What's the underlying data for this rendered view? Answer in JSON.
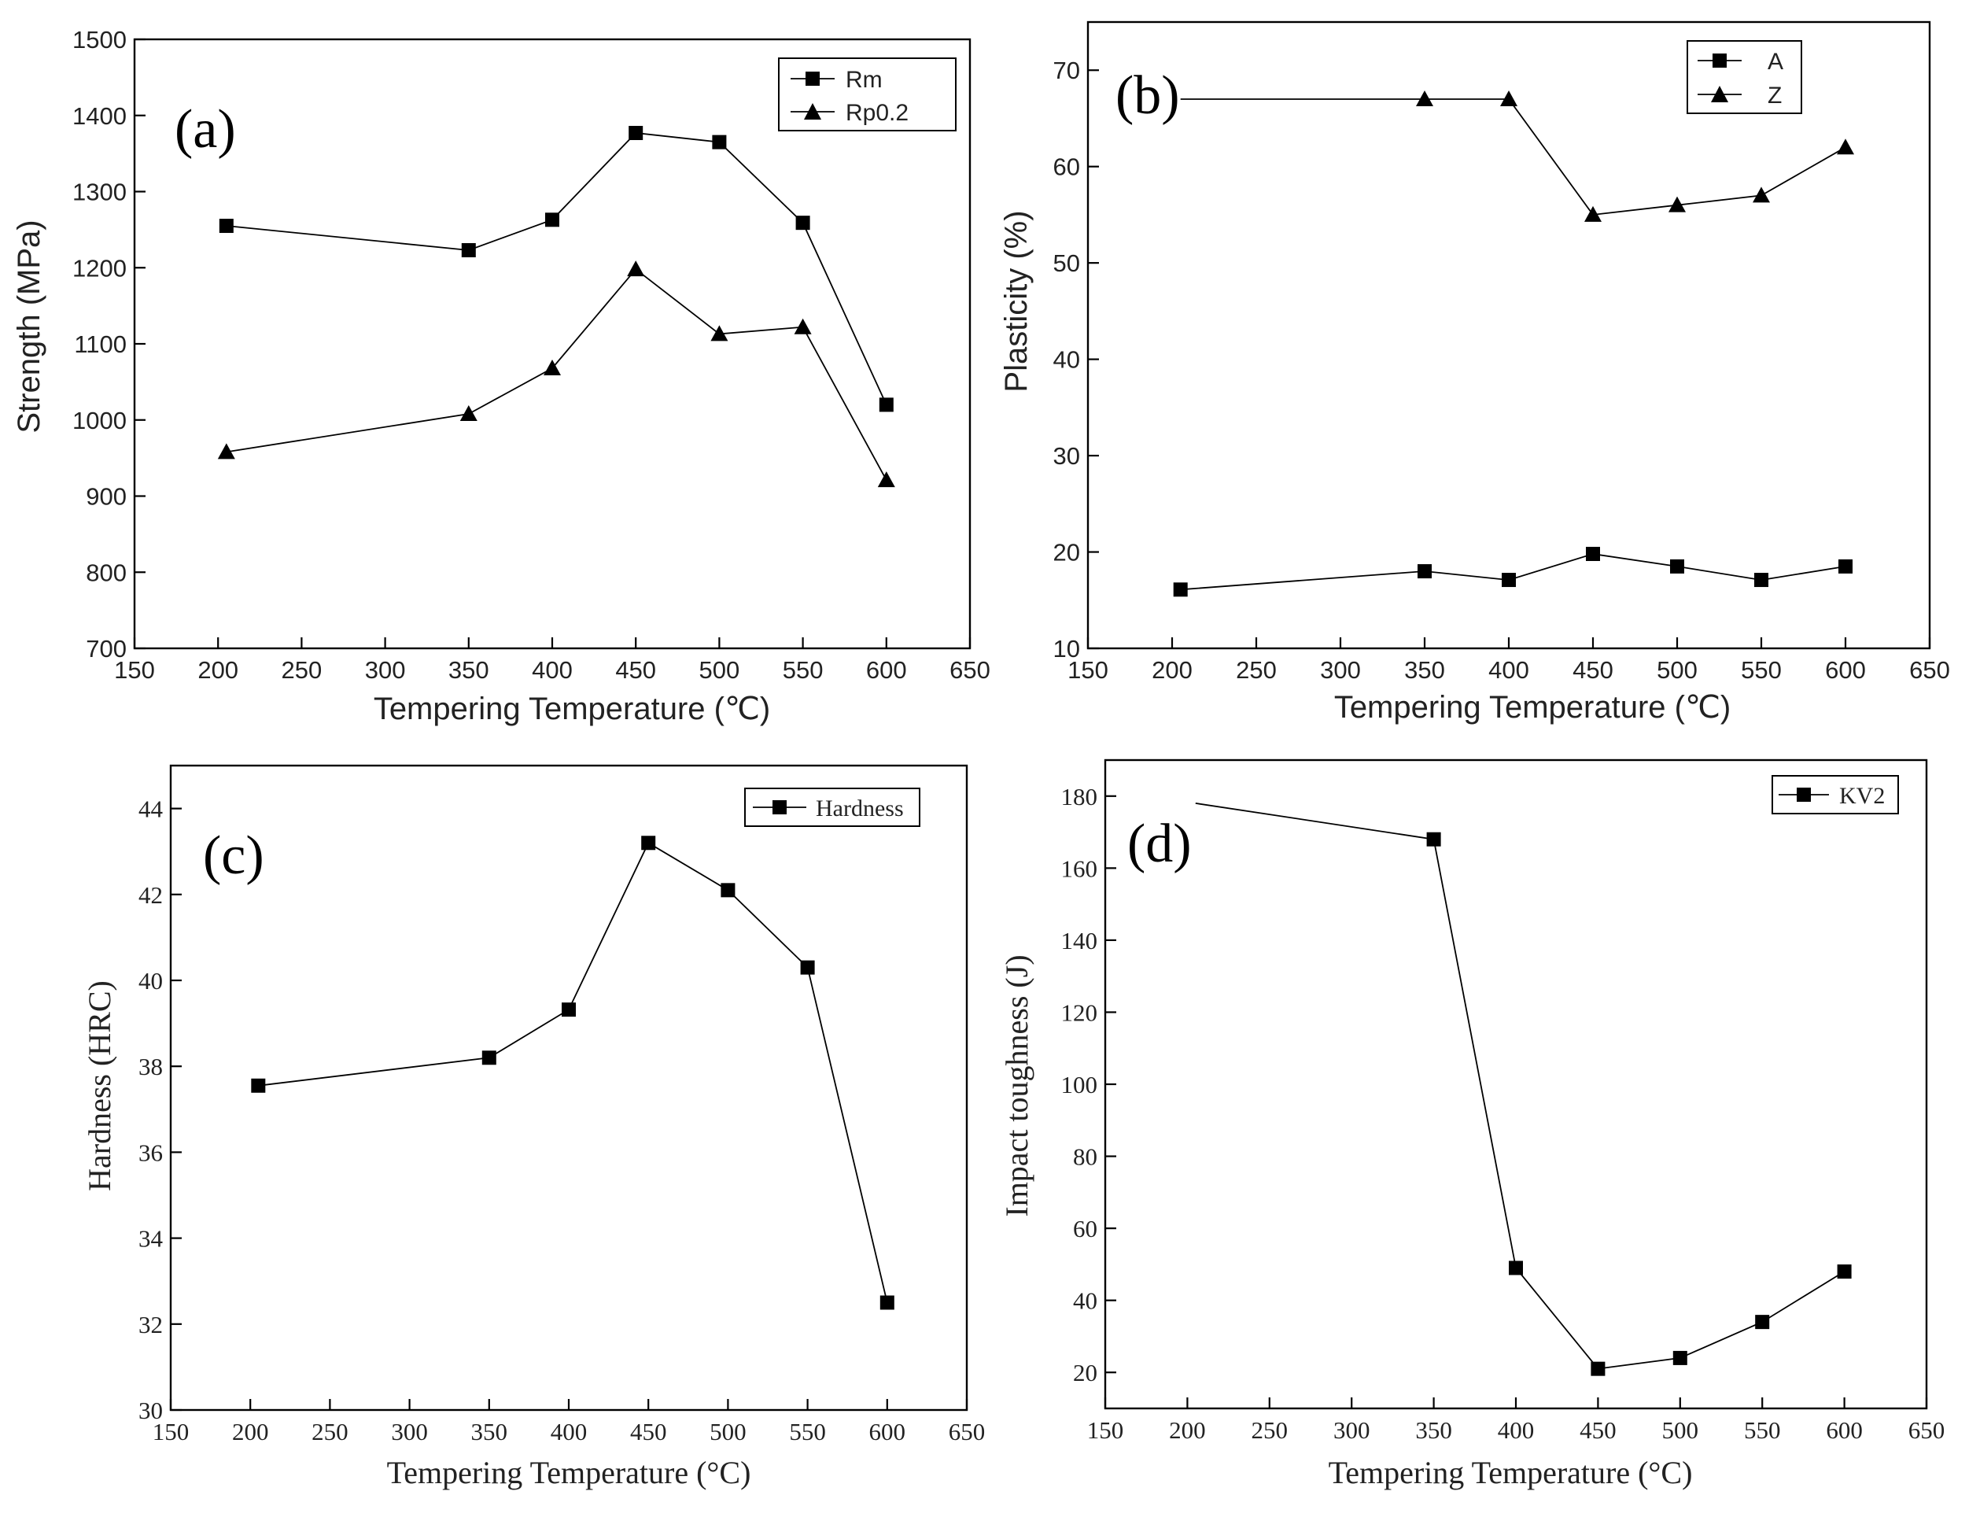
{
  "chart_data": [
    {
      "type": "line",
      "panel_label": "(a)",
      "xlabel": "Tempering Temperature (℃)",
      "ylabel": "Strength (MPa)",
      "xlim": [
        150,
        650
      ],
      "ylim": [
        700,
        1500
      ],
      "xticks": [
        150,
        200,
        250,
        300,
        350,
        400,
        450,
        500,
        550,
        600,
        650
      ],
      "yticks": [
        700,
        800,
        900,
        1000,
        1100,
        1200,
        1300,
        1400,
        1500
      ],
      "legend_position": "top-right",
      "series": [
        {
          "name": "Rm",
          "marker": "square",
          "x": [
            205,
            350,
            400,
            450,
            500,
            550,
            600
          ],
          "values": [
            1255,
            1223,
            1263,
            1377,
            1365,
            1259,
            1020
          ]
        },
        {
          "name": "Rp0.2",
          "marker": "triangle",
          "x": [
            205,
            350,
            400,
            450,
            500,
            550,
            600
          ],
          "values": [
            958,
            1008,
            1068,
            1198,
            1113,
            1122,
            921
          ]
        }
      ]
    },
    {
      "type": "line",
      "panel_label": "(b)",
      "xlabel": "Tempering Temperature (℃)",
      "ylabel": "Plasticity (%)",
      "xlim": [
        150,
        650
      ],
      "ylim": [
        10,
        75
      ],
      "xticks": [
        150,
        200,
        250,
        300,
        350,
        400,
        450,
        500,
        550,
        600,
        650
      ],
      "yticks": [
        10,
        20,
        30,
        40,
        50,
        60,
        70
      ],
      "legend_position": "top-right",
      "series": [
        {
          "name": "A",
          "marker": "square",
          "x": [
            205,
            350,
            400,
            450,
            500,
            550,
            600
          ],
          "values": [
            16.1,
            18.0,
            17.1,
            19.8,
            18.5,
            17.1,
            18.5
          ]
        },
        {
          "name": "Z",
          "marker": "triangle",
          "x": [
            205,
            350,
            400,
            450,
            500,
            550,
            600
          ],
          "values": [
            67,
            67,
            67,
            55,
            56,
            57,
            62
          ]
        }
      ]
    },
    {
      "type": "line",
      "panel_label": "(c)",
      "xlabel": "Tempering Temperature (°C)",
      "ylabel": "Hardness (HRC)",
      "xlim": [
        150,
        650
      ],
      "ylim": [
        30,
        45
      ],
      "xticks": [
        150,
        200,
        250,
        300,
        350,
        400,
        450,
        500,
        550,
        600,
        650
      ],
      "yticks": [
        30,
        32,
        34,
        36,
        38,
        40,
        42,
        44
      ],
      "legend_position": "top-right",
      "series": [
        {
          "name": "Hardness",
          "marker": "square",
          "x": [
            205,
            350,
            400,
            450,
            500,
            550,
            600
          ],
          "values": [
            37.55,
            38.2,
            39.32,
            43.2,
            42.1,
            40.3,
            32.5
          ]
        }
      ]
    },
    {
      "type": "line",
      "panel_label": "(d)",
      "xlabel": "Tempering Temperature (°C)",
      "ylabel": "Impact toughness (J)",
      "xlim": [
        150,
        650
      ],
      "ylim": [
        10,
        190
      ],
      "xticks": [
        150,
        200,
        250,
        300,
        350,
        400,
        450,
        500,
        550,
        600,
        650
      ],
      "yticks": [
        20,
        40,
        60,
        80,
        100,
        120,
        140,
        160,
        180
      ],
      "legend_position": "top-right",
      "series": [
        {
          "name": "KV2",
          "marker": "square",
          "x": [
            205,
            350,
            400,
            450,
            500,
            550,
            600
          ],
          "values": [
            178,
            168,
            49,
            21,
            24,
            34,
            48
          ]
        }
      ]
    }
  ]
}
